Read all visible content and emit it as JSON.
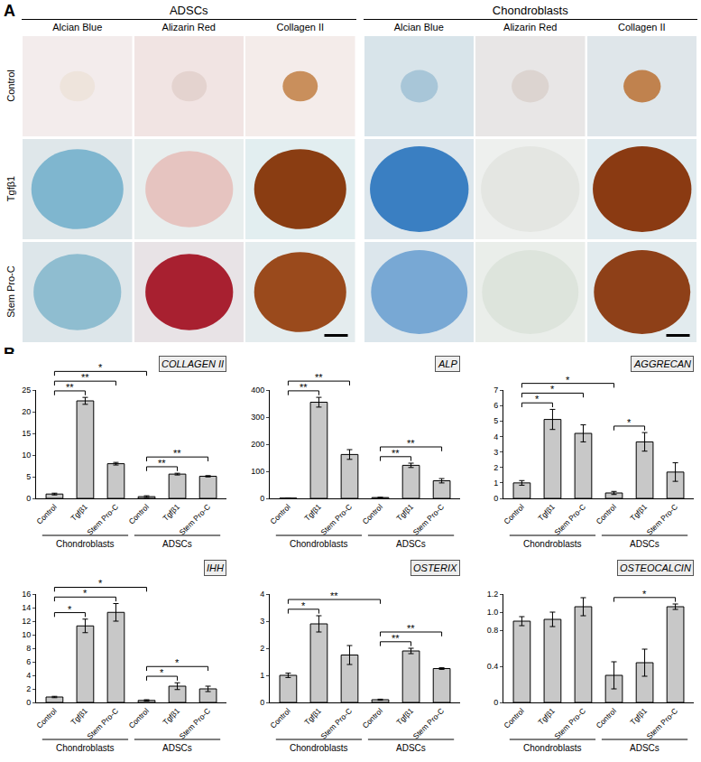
{
  "panel_a": {
    "label": "A",
    "groups": [
      {
        "title": "ADSCs",
        "stains": [
          "Alcian Blue",
          "Alizarin Red",
          "Collagen II"
        ]
      },
      {
        "title": "Chondroblasts",
        "stains": [
          "Alcian Blue",
          "Alizarin Red",
          "Collagen II"
        ]
      }
    ],
    "rows": [
      "Control",
      "Tgfβ1",
      "Stem Pro-C"
    ]
  },
  "panel_b_label": "B",
  "chart_data": [
    {
      "type": "bar",
      "title": "COLLAGEN II",
      "categories": [
        "Control",
        "Tgfβ1",
        "Stem Pro-C",
        "Control",
        "Tgfβ1",
        "Stem Pro-C"
      ],
      "groups": [
        "Chondroblasts",
        "Chondroblasts",
        "Chondroblasts",
        "ADSCs",
        "ADSCs",
        "ADSCs"
      ],
      "values": [
        1.0,
        22.5,
        8.0,
        0.4,
        5.6,
        5.1
      ],
      "errors": [
        0.2,
        0.8,
        0.3,
        0.2,
        0.2,
        0.15
      ],
      "color": "#c8c8c8",
      "ylim": [
        0,
        25
      ],
      "yticks": [
        0,
        5,
        10,
        15,
        20,
        25
      ],
      "grid": false,
      "significance": [
        {
          "from": 0,
          "to": 1,
          "label": "**"
        },
        {
          "from": 0,
          "to": 2,
          "label": "**"
        },
        {
          "from": 0,
          "to": 3,
          "label": "*"
        },
        {
          "from": 3,
          "to": 4,
          "label": "**"
        },
        {
          "from": 3,
          "to": 5,
          "label": "**"
        }
      ]
    },
    {
      "type": "bar",
      "title": "ALP",
      "categories": [
        "Control",
        "Tgfβ1",
        "Stem Pro-C",
        "Control",
        "Tgfβ1",
        "Stem Pro-C"
      ],
      "groups": [
        "Chondroblasts",
        "Chondroblasts",
        "Chondroblasts",
        "ADSCs",
        "ADSCs",
        "ADSCs"
      ],
      "values": [
        1,
        355,
        162,
        3,
        122,
        65
      ],
      "errors": [
        0.5,
        18,
        18,
        1,
        8,
        8
      ],
      "color": "#c8c8c8",
      "ylim": [
        0,
        400
      ],
      "yticks": [
        0,
        100,
        200,
        300,
        400
      ],
      "grid": false,
      "significance": [
        {
          "from": 0,
          "to": 1,
          "label": "**"
        },
        {
          "from": 0,
          "to": 2,
          "label": "**"
        },
        {
          "from": 3,
          "to": 4,
          "label": "**"
        },
        {
          "from": 3,
          "to": 5,
          "label": "**"
        }
      ]
    },
    {
      "type": "bar",
      "title": "AGGRECAN",
      "categories": [
        "Control",
        "Tgfβ1",
        "Stem Pro-C",
        "Control",
        "Tgfβ1",
        "Stem Pro-C"
      ],
      "groups": [
        "Chondroblasts",
        "Chondroblasts",
        "Chondroblasts",
        "ADSCs",
        "ADSCs",
        "ADSCs"
      ],
      "values": [
        1.0,
        5.1,
        4.2,
        0.35,
        3.65,
        1.7
      ],
      "errors": [
        0.15,
        0.65,
        0.55,
        0.1,
        0.6,
        0.6
      ],
      "color": "#c8c8c8",
      "ylim": [
        0,
        7
      ],
      "yticks": [
        0,
        1,
        2,
        3,
        4,
        5,
        6,
        7
      ],
      "grid": false,
      "significance": [
        {
          "from": 0,
          "to": 1,
          "label": "*"
        },
        {
          "from": 0,
          "to": 2,
          "label": "*"
        },
        {
          "from": 0,
          "to": 3,
          "label": "*"
        },
        {
          "from": 3,
          "to": 4,
          "label": "*"
        }
      ]
    },
    {
      "type": "bar",
      "title": "IHH",
      "categories": [
        "Control",
        "Tgfβ1",
        "Stem Pro-C",
        "Control",
        "Tgfβ1",
        "Stem Pro-C"
      ],
      "groups": [
        "Chondroblasts",
        "Chondroblasts",
        "Chondroblasts",
        "ADSCs",
        "ADSCs",
        "ADSCs"
      ],
      "values": [
        0.8,
        11.3,
        13.3,
        0.3,
        2.4,
        2.0
      ],
      "errors": [
        0.1,
        1.0,
        1.3,
        0.1,
        0.5,
        0.4
      ],
      "color": "#c8c8c8",
      "ylim": [
        0,
        16
      ],
      "yticks": [
        0,
        2,
        4,
        6,
        8,
        10,
        12,
        14,
        16
      ],
      "grid": false,
      "significance": [
        {
          "from": 0,
          "to": 1,
          "label": "*"
        },
        {
          "from": 0,
          "to": 2,
          "label": "*"
        },
        {
          "from": 0,
          "to": 3,
          "label": "*"
        },
        {
          "from": 3,
          "to": 4,
          "label": "*"
        },
        {
          "from": 3,
          "to": 5,
          "label": "*"
        }
      ]
    },
    {
      "type": "bar",
      "title": "OSTERIX",
      "categories": [
        "Control",
        "Tgfβ1",
        "Stem Pro-C",
        "Control",
        "Tgfβ1",
        "Stem Pro-C"
      ],
      "groups": [
        "Chondroblasts",
        "Chondroblasts",
        "Chondroblasts",
        "ADSCs",
        "ADSCs",
        "ADSCs"
      ],
      "values": [
        1.0,
        2.9,
        1.75,
        0.1,
        1.9,
        1.25
      ],
      "errors": [
        0.08,
        0.3,
        0.35,
        0.02,
        0.1,
        0.03
      ],
      "color": "#c8c8c8",
      "ylim": [
        0,
        4
      ],
      "yticks": [
        0,
        1,
        2,
        3,
        4
      ],
      "grid": false,
      "significance": [
        {
          "from": 0,
          "to": 1,
          "label": "*"
        },
        {
          "from": 0,
          "to": 3,
          "label": "**"
        },
        {
          "from": 3,
          "to": 4,
          "label": "**"
        },
        {
          "from": 3,
          "to": 5,
          "label": "**"
        }
      ]
    },
    {
      "type": "bar",
      "title": "OSTEOCALCIN",
      "categories": [
        "Control",
        "Tgfβ1",
        "Stem Pro-C",
        "Control",
        "Tgfβ1",
        "Stem Pro-C"
      ],
      "groups": [
        "Chondroblasts",
        "Chondroblasts",
        "Chondroblasts",
        "ADSCs",
        "ADSCs",
        "ADSCs"
      ],
      "values": [
        0.9,
        0.92,
        1.06,
        0.3,
        0.44,
        1.06
      ],
      "errors": [
        0.05,
        0.08,
        0.1,
        0.15,
        0.15,
        0.03
      ],
      "color": "#c8c8c8",
      "ylim": [
        0,
        1.2
      ],
      "yticks": [
        0,
        0.4,
        0.8,
        {
          "value": 1,
          "label": "1.0"
        },
        1.2
      ],
      "grid": false,
      "significance": [
        {
          "from": 3,
          "to": 5,
          "label": "*"
        }
      ]
    }
  ]
}
